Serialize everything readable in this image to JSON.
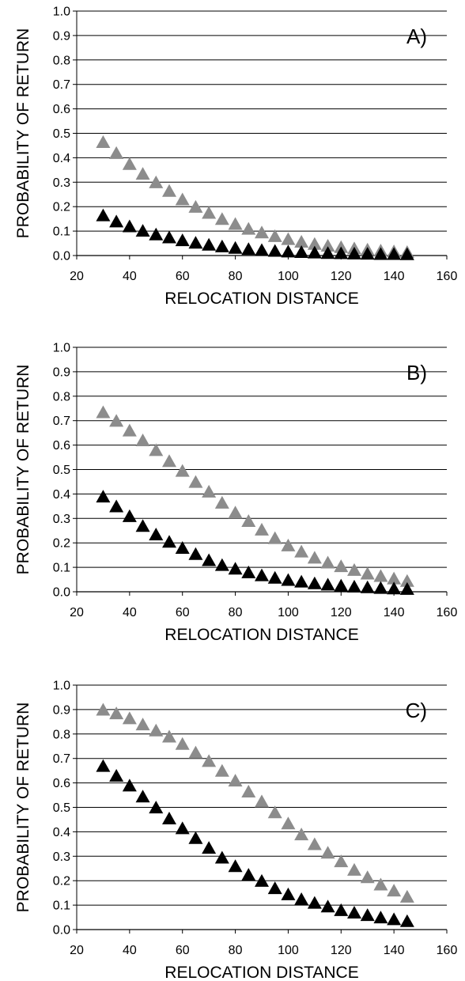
{
  "colors": {
    "series_gray": "#8c8c8c",
    "series_black": "#000000",
    "grid": "#000000"
  },
  "chart_data": [
    {
      "type": "scatter",
      "panel_label": "A)",
      "xlabel": "RELOCATION DISTANCE",
      "ylabel": "PROBABILITY OF RETURN",
      "xlim": [
        20,
        160
      ],
      "ylim": [
        0,
        1.0
      ],
      "xticks": [
        "20",
        "40",
        "60",
        "80",
        "100",
        "120",
        "140",
        "160"
      ],
      "yticks": [
        "0.0",
        "0.1",
        "0.2",
        "0.3",
        "0.4",
        "0.5",
        "0.6",
        "0.7",
        "0.8",
        "0.9",
        "1.0"
      ],
      "grid": "horizontal",
      "marker": "triangle",
      "x": [
        30,
        35,
        40,
        45,
        50,
        55,
        60,
        65,
        70,
        75,
        80,
        85,
        90,
        95,
        100,
        105,
        110,
        115,
        120,
        125,
        130,
        135,
        140,
        145
      ],
      "series": [
        {
          "color": "#8c8c8c",
          "values": [
            0.46,
            0.415,
            0.37,
            0.33,
            0.295,
            0.26,
            0.225,
            0.195,
            0.17,
            0.145,
            0.125,
            0.105,
            0.09,
            0.075,
            0.063,
            0.052,
            0.043,
            0.036,
            0.03,
            0.025,
            0.02,
            0.016,
            0.013,
            0.01
          ]
        },
        {
          "color": "#000000",
          "values": [
            0.16,
            0.135,
            0.115,
            0.097,
            0.082,
            0.07,
            0.058,
            0.048,
            0.04,
            0.033,
            0.027,
            0.022,
            0.018,
            0.015,
            0.012,
            0.01,
            0.008,
            0.006,
            0.005,
            0.004,
            0.003,
            0.002,
            0.002,
            0.001
          ]
        }
      ]
    },
    {
      "type": "scatter",
      "panel_label": "B)",
      "xlabel": "RELOCATION DISTANCE",
      "ylabel": "PROBABILITY OF RETURN",
      "xlim": [
        20,
        160
      ],
      "ylim": [
        0,
        1.0
      ],
      "xticks": [
        "20",
        "40",
        "60",
        "80",
        "100",
        "120",
        "140",
        "160"
      ],
      "yticks": [
        "0.0",
        "0.1",
        "0.2",
        "0.3",
        "0.4",
        "0.5",
        "0.6",
        "0.7",
        "0.8",
        "0.9",
        "1.0"
      ],
      "grid": "horizontal",
      "marker": "triangle",
      "x": [
        30,
        35,
        40,
        45,
        50,
        55,
        60,
        65,
        70,
        75,
        80,
        85,
        90,
        95,
        100,
        105,
        110,
        115,
        120,
        125,
        130,
        135,
        140,
        145
      ],
      "series": [
        {
          "color": "#8c8c8c",
          "values": [
            0.73,
            0.695,
            0.655,
            0.615,
            0.575,
            0.53,
            0.49,
            0.445,
            0.405,
            0.36,
            0.32,
            0.285,
            0.25,
            0.215,
            0.185,
            0.16,
            0.135,
            0.115,
            0.1,
            0.085,
            0.07,
            0.06,
            0.05,
            0.04
          ]
        },
        {
          "color": "#000000",
          "values": [
            0.385,
            0.345,
            0.305,
            0.265,
            0.23,
            0.2,
            0.175,
            0.15,
            0.125,
            0.105,
            0.09,
            0.075,
            0.063,
            0.053,
            0.044,
            0.037,
            0.03,
            0.025,
            0.021,
            0.017,
            0.014,
            0.011,
            0.009,
            0.007
          ]
        }
      ]
    },
    {
      "type": "scatter",
      "panel_label": "C)",
      "xlabel": "RELOCATION DISTANCE",
      "ylabel": "PROBABILITY OF RETURN",
      "xlim": [
        20,
        160
      ],
      "ylim": [
        0,
        1.0
      ],
      "xticks": [
        "20",
        "40",
        "60",
        "80",
        "100",
        "120",
        "140",
        "160"
      ],
      "yticks": [
        "0.0",
        "0.1",
        "0.2",
        "0.3",
        "0.4",
        "0.5",
        "0.6",
        "0.7",
        "0.8",
        "0.9",
        "1.0"
      ],
      "grid": "horizontal",
      "marker": "triangle",
      "x": [
        30,
        35,
        40,
        45,
        50,
        55,
        60,
        65,
        70,
        75,
        80,
        85,
        90,
        95,
        100,
        105,
        110,
        115,
        120,
        125,
        130,
        135,
        140,
        145
      ],
      "series": [
        {
          "color": "#8c8c8c",
          "values": [
            0.895,
            0.88,
            0.86,
            0.835,
            0.81,
            0.785,
            0.755,
            0.72,
            0.685,
            0.645,
            0.605,
            0.56,
            0.52,
            0.475,
            0.43,
            0.385,
            0.345,
            0.31,
            0.275,
            0.24,
            0.21,
            0.18,
            0.155,
            0.13
          ]
        },
        {
          "color": "#000000",
          "values": [
            0.665,
            0.625,
            0.585,
            0.54,
            0.495,
            0.45,
            0.41,
            0.37,
            0.33,
            0.29,
            0.255,
            0.22,
            0.195,
            0.165,
            0.14,
            0.12,
            0.105,
            0.09,
            0.075,
            0.065,
            0.055,
            0.045,
            0.038,
            0.03
          ]
        }
      ]
    }
  ]
}
